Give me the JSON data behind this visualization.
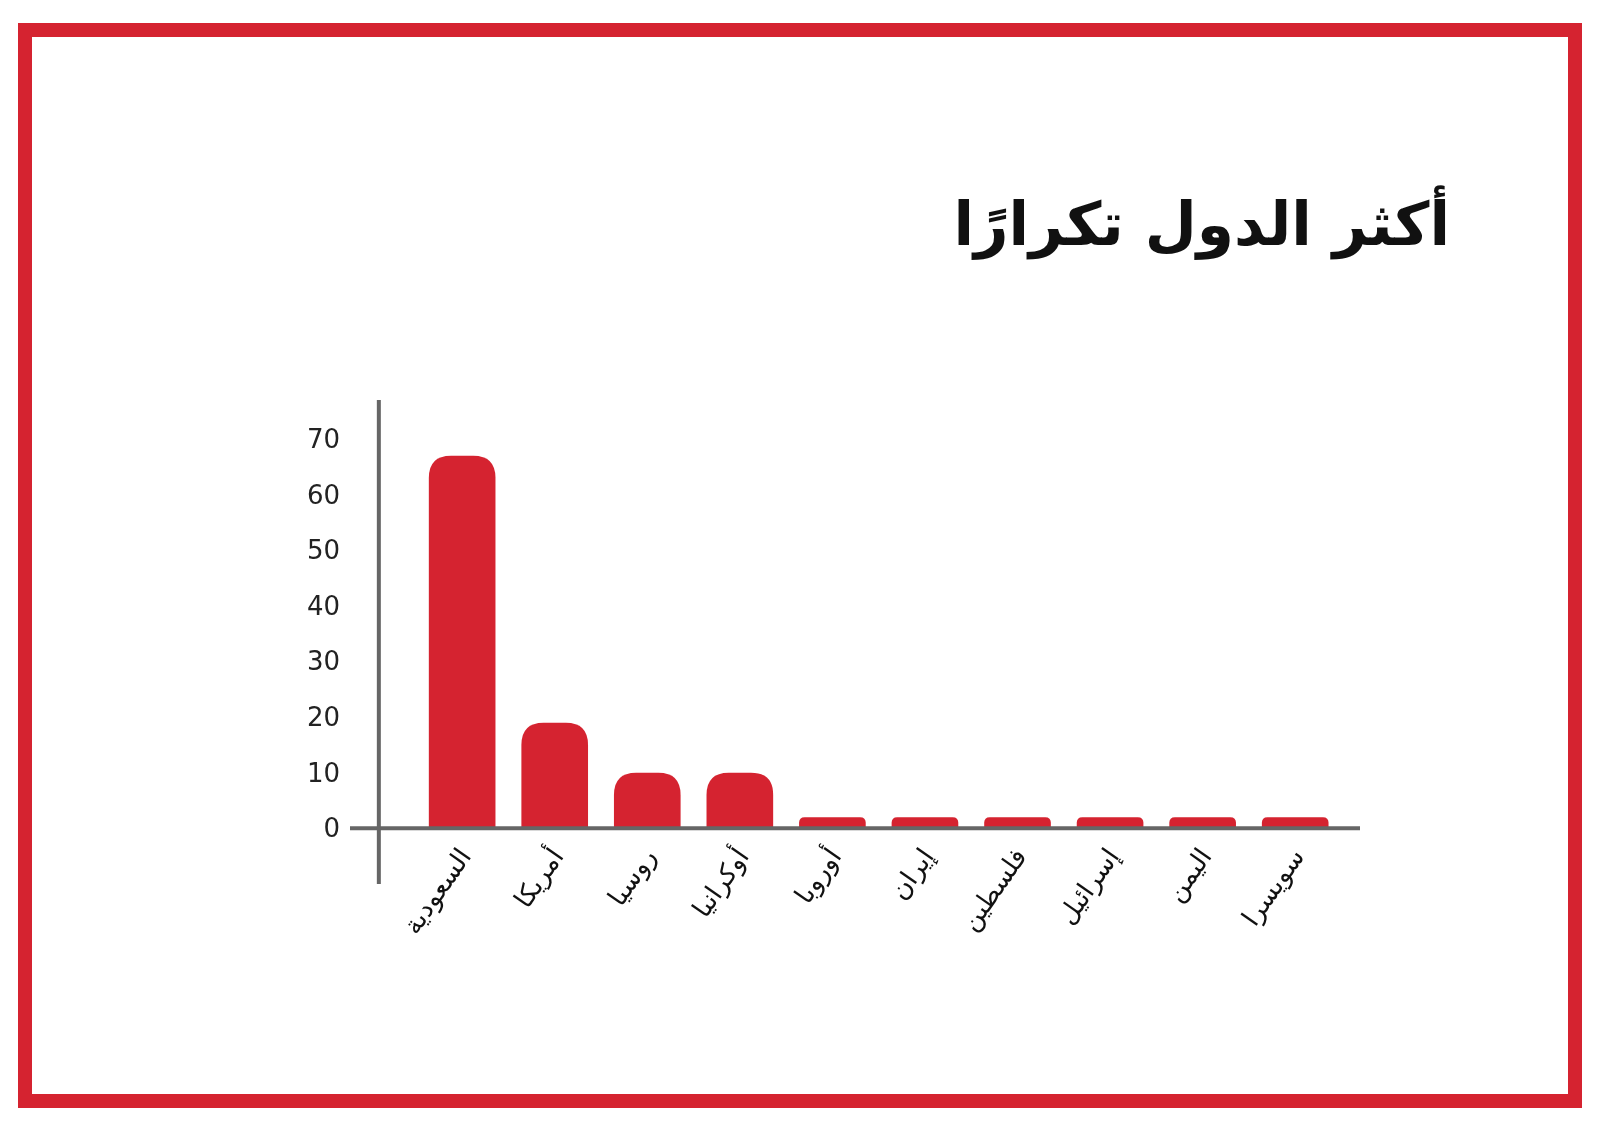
{
  "chart_data": {
    "type": "bar",
    "title": "أكثر الدول تكرارًا",
    "categories": [
      "السعودية",
      "أمريكا",
      "روسيا",
      "أوكرانيا",
      "أوروبا",
      "إيران",
      "فلسطين",
      "إسرائيل",
      "اليمن",
      "سويسرا"
    ],
    "values": [
      67,
      19,
      10,
      10,
      2,
      2,
      2,
      2,
      2,
      2
    ],
    "color": "#d52330",
    "ylim": [
      -10,
      77
    ],
    "yticks": [
      0,
      10,
      20,
      30,
      40,
      50,
      60,
      70
    ]
  }
}
